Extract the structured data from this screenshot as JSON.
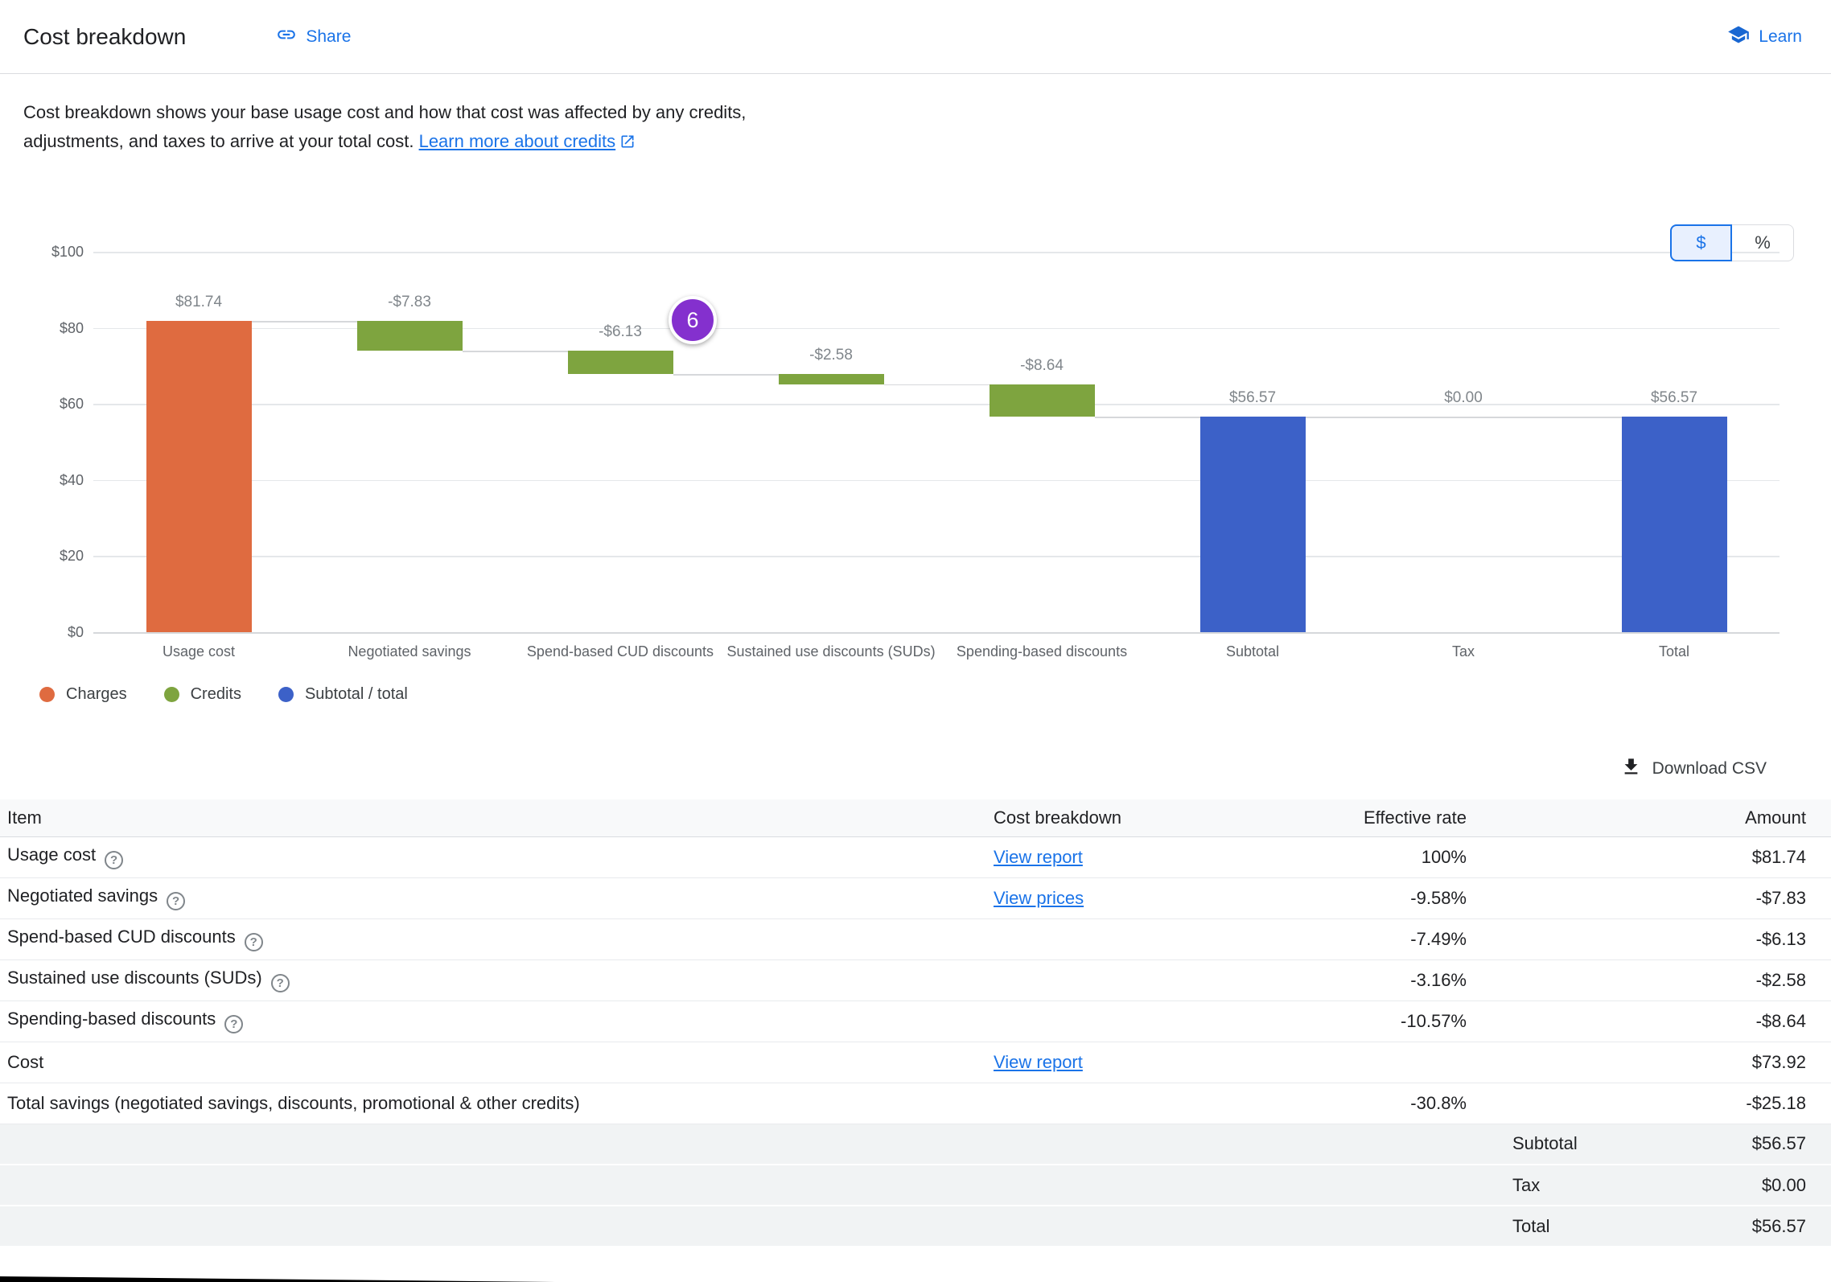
{
  "header": {
    "title": "Cost breakdown",
    "share_label": "Share",
    "learn_label": "Learn"
  },
  "description": {
    "body": "Cost breakdown shows your base usage cost and how that cost was affected by any credits, adjustments, and taxes to arrive at your total cost. ",
    "link_label": "Learn more about credits"
  },
  "toggle": {
    "dollar": "$",
    "percent": "%",
    "selected": "$"
  },
  "icons": {
    "share": "link-icon",
    "learn": "school-icon",
    "external": "open-in-new-icon",
    "download": "download-icon",
    "help": "help-circle-icon"
  },
  "theme": {
    "link_color": "#1a73e8",
    "charge_color": "#df6b40",
    "credit_color": "#7ea43f",
    "total_color": "#3c61c8",
    "badge_color": "#8430ce"
  },
  "chart_data": {
    "type": "waterfall-bar",
    "title": "",
    "xlabel": "",
    "ylabel": "",
    "ylim": [
      0,
      100
    ],
    "grid": true,
    "legend_position": "bottom",
    "y_ticks": [
      "$0",
      "$20",
      "$40",
      "$60",
      "$80",
      "$100"
    ],
    "categories": [
      "Usage cost",
      "Negotiated savings",
      "Spend-based CUD discounts",
      "Sustained use discounts (SUDs)",
      "Spending-based discounts",
      "Subtotal",
      "Tax",
      "Total"
    ],
    "values": [
      81.74,
      -7.83,
      -6.13,
      -2.58,
      -8.64,
      56.57,
      0.0,
      56.57
    ],
    "bar_types": [
      "charge",
      "credit",
      "credit",
      "credit",
      "credit",
      "total",
      "tax",
      "total"
    ],
    "labels": [
      "$81.74",
      "-$7.83",
      "-$6.13",
      "-$2.58",
      "-$8.64",
      "$56.57",
      "$0.00",
      "$56.57"
    ],
    "colors": {
      "charge": "#df6b40",
      "credit": "#7ea43f",
      "total": "#3c61c8"
    },
    "badge": {
      "text": "6",
      "color": "#8430ce"
    }
  },
  "legend": [
    {
      "label": "Charges",
      "color": "#df6b40"
    },
    {
      "label": "Credits",
      "color": "#7ea43f"
    },
    {
      "label": "Subtotal / total",
      "color": "#3c61c8"
    }
  ],
  "download": {
    "label": "Download CSV"
  },
  "table": {
    "columns": [
      "Item",
      "Cost breakdown",
      "Effective rate",
      "Amount"
    ],
    "rows": [
      {
        "item": "Usage cost",
        "help": true,
        "link": "View report",
        "rate": "100%",
        "amount": "$81.74"
      },
      {
        "item": "Negotiated savings",
        "help": true,
        "link": "View prices",
        "rate": "-9.58%",
        "amount": "-$7.83"
      },
      {
        "item": "Spend-based CUD discounts",
        "help": true,
        "link": "",
        "rate": "-7.49%",
        "amount": "-$6.13"
      },
      {
        "item": "Sustained use discounts (SUDs)",
        "help": true,
        "link": "",
        "rate": "-3.16%",
        "amount": "-$2.58"
      },
      {
        "item": "Spending-based discounts",
        "help": true,
        "link": "",
        "rate": "-10.57%",
        "amount": "-$8.64"
      },
      {
        "item": "Cost",
        "help": false,
        "link": "View report",
        "rate": "",
        "amount": "$73.92"
      },
      {
        "item": "Total savings (negotiated savings, discounts, promotional & other credits)",
        "help": false,
        "link": "",
        "rate": "-30.8%",
        "amount": "-$25.18"
      }
    ],
    "summary_rows": [
      {
        "label": "Subtotal",
        "amount": "$56.57"
      },
      {
        "label": "Tax",
        "amount": "$0.00"
      },
      {
        "label": "Total",
        "amount": "$56.57"
      }
    ]
  }
}
